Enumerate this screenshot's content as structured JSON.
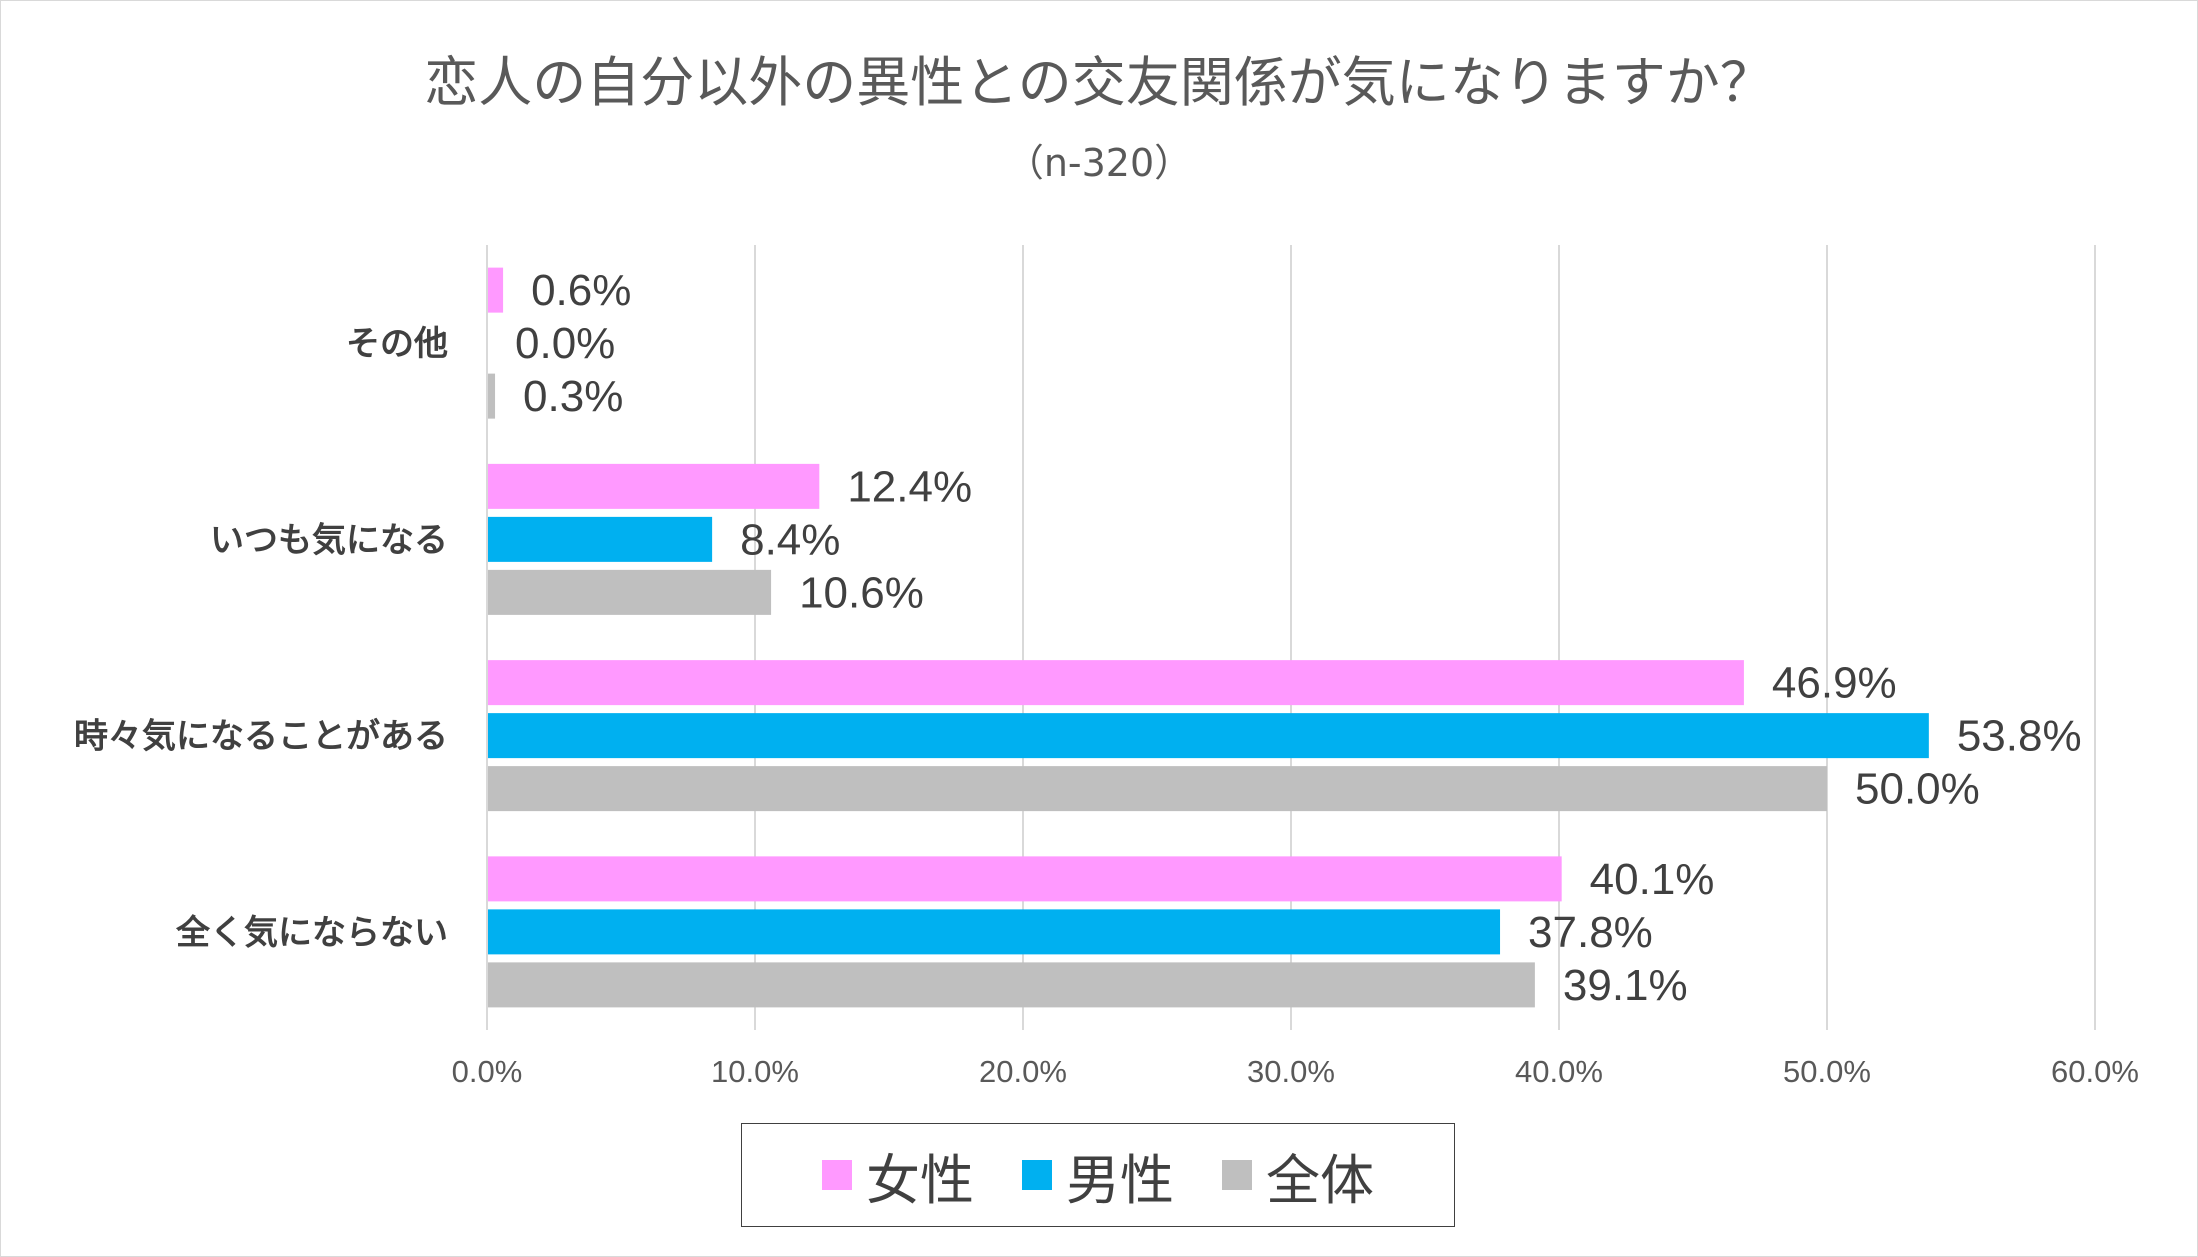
{
  "chart_data": {
    "type": "bar",
    "orientation": "horizontal",
    "title": "恋人の自分以外の異性との交友関係が気になりますか？",
    "subtitle": "（n-320）",
    "categories": [
      "その他",
      "いつも気になる",
      "時々気になることがある",
      "全く気にならない"
    ],
    "series": [
      {
        "name": "女性",
        "color": "#ff99ff",
        "values": [
          0.6,
          12.4,
          46.9,
          40.1
        ],
        "labels": [
          "0.6%",
          "12.4%",
          "46.9%",
          "40.1%"
        ]
      },
      {
        "name": "男性",
        "color": "#00b0f0",
        "values": [
          0.0,
          8.4,
          53.8,
          37.8
        ],
        "labels": [
          "0.0%",
          "8.4%",
          "53.8%",
          "37.8%"
        ]
      },
      {
        "name": "全体",
        "color": "#bfbfbf",
        "values": [
          0.3,
          10.6,
          50.0,
          39.1
        ],
        "labels": [
          "0.3%",
          "10.6%",
          "50.0%",
          "39.1%"
        ]
      }
    ],
    "xlim": [
      0,
      60
    ],
    "xticks": [
      0,
      10,
      20,
      30,
      40,
      50,
      60
    ],
    "xtick_labels": [
      "0.0%",
      "10.0%",
      "20.0%",
      "30.0%",
      "40.0%",
      "50.0%",
      "60.0%"
    ],
    "grid": true,
    "legend_position": "bottom"
  }
}
